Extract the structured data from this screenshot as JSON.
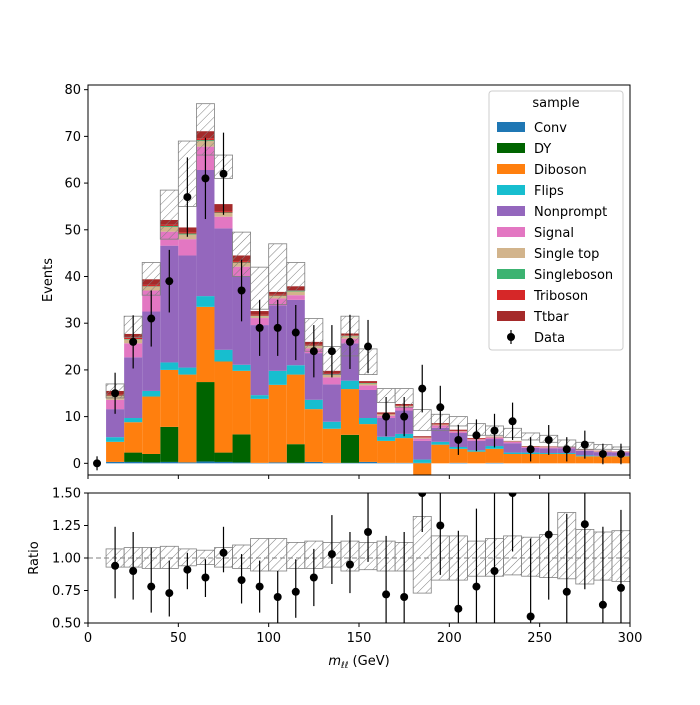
{
  "chart_data": [
    {
      "type": "bar",
      "stacked": true,
      "ylabel": "Events",
      "ylim": [
        -2.5,
        81
      ],
      "xlim": [
        0,
        300
      ],
      "yticks": [
        "0",
        "10",
        "20",
        "30",
        "40",
        "50",
        "60",
        "70",
        "80"
      ],
      "bin_edges": [
        0,
        10,
        20,
        30,
        40,
        50,
        60,
        70,
        80,
        90,
        100,
        110,
        120,
        130,
        140,
        150,
        160,
        170,
        180,
        190,
        200,
        210,
        220,
        230,
        240,
        250,
        260,
        270,
        280,
        290,
        300
      ],
      "legend": {
        "title": "sample",
        "position": "top-right",
        "data_label": "Data"
      },
      "series": [
        {
          "name": "Conv",
          "color": "#1f77b4",
          "values": [
            0,
            0.3,
            0.3,
            0.2,
            0.3,
            0.2,
            0.4,
            0.3,
            0.2,
            0.1,
            0.2,
            0.1,
            0.3,
            0.1,
            0.1,
            0.3,
            0.1,
            0.1,
            0.1,
            0,
            0.1,
            0,
            0.1,
            0,
            0,
            0,
            0,
            0,
            0,
            0
          ]
        },
        {
          "name": "DY",
          "color": "#006400",
          "values": [
            0,
            0,
            2,
            1.8,
            7.5,
            0,
            17,
            2,
            6,
            0,
            0,
            4,
            0,
            0,
            6,
            0,
            0,
            0,
            0,
            0,
            0,
            0,
            0,
            0,
            0,
            0,
            0,
            0,
            0,
            0
          ]
        },
        {
          "name": "Diboson",
          "color": "#ff7f0e",
          "values": [
            0,
            4.3,
            6.5,
            12.3,
            12.2,
            18.8,
            16.1,
            19.5,
            13.6,
            13.7,
            16.6,
            14.9,
            11.3,
            7.3,
            9.8,
            8.1,
            4.7,
            5.3,
            -2.4,
            4,
            3,
            2.5,
            3,
            2,
            2,
            2,
            2,
            1.5,
            1.5,
            1.5
          ]
        },
        {
          "name": "Flips",
          "color": "#17becf",
          "values": [
            0,
            1,
            0.9,
            1.2,
            1.6,
            1.5,
            2.3,
            2.5,
            1.3,
            0.8,
            3,
            2,
            2,
            1.5,
            1.8,
            1.3,
            0.9,
            0.9,
            0.7,
            0.6,
            0.4,
            0.3,
            0.6,
            0.3,
            0.3,
            0.2,
            0.2,
            0.2,
            0.1,
            0.1
          ]
        },
        {
          "name": "Nonprompt",
          "color": "#9467bd",
          "values": [
            0,
            6,
            13,
            17,
            25,
            24,
            27,
            26,
            19,
            15,
            14,
            14,
            10,
            8,
            8,
            6,
            4,
            5,
            4,
            3,
            3,
            2,
            1.5,
            2,
            1,
            1,
            1,
            1,
            0.8,
            0.7
          ]
        },
        {
          "name": "Signal",
          "color": "#e377c2",
          "values": [
            0,
            2,
            3,
            4.5,
            3,
            3.5,
            5,
            2.5,
            2,
            1.5,
            1.5,
            1,
            1,
            1.5,
            1,
            1,
            0.5,
            0.8,
            0.5,
            0.5,
            0.3,
            0.3,
            0.3,
            0.3,
            0.2,
            0.2,
            0.2,
            0.1,
            0.1,
            0.1
          ]
        },
        {
          "name": "Single top",
          "color": "#d2b48c",
          "values": [
            0,
            0.8,
            0.8,
            0.8,
            1,
            1,
            1.2,
            0.8,
            0.8,
            0.4,
            0.5,
            0.8,
            0.5,
            0.6,
            0.5,
            0.4,
            0.3,
            0.2,
            0.2,
            0.2,
            0.1,
            0.1,
            0.1,
            0.1,
            0.1,
            0.1,
            0.1,
            0.1,
            0.1,
            0
          ]
        },
        {
          "name": "Singleboson",
          "color": "#3cb371",
          "values": [
            0,
            0.1,
            0.1,
            0.1,
            0.2,
            0.2,
            0.2,
            0.1,
            0.1,
            0.1,
            0.1,
            0.1,
            0.1,
            0.1,
            0.1,
            0.1,
            0,
            0,
            0,
            0,
            0,
            0,
            0,
            0,
            0,
            0,
            0,
            0,
            0,
            0
          ]
        },
        {
          "name": "Triboson",
          "color": "#d62728",
          "values": [
            0,
            0.2,
            0.3,
            0.3,
            0.3,
            0.3,
            0.4,
            0.3,
            0.3,
            0.2,
            0.2,
            0.2,
            0.2,
            0.1,
            0.1,
            0.1,
            0.1,
            0.1,
            0.1,
            0.1,
            0.1,
            0.1,
            0,
            0,
            0,
            0,
            0,
            0,
            0,
            0
          ]
        },
        {
          "name": "Ttbar",
          "color": "#a52a2a",
          "values": [
            0,
            0.8,
            0.8,
            1.2,
            1,
            1,
            1.5,
            1.5,
            1.2,
            0.8,
            0.6,
            0.8,
            0.6,
            0.6,
            0.4,
            0.3,
            0.3,
            0.3,
            0.2,
            0.2,
            0.2,
            0.1,
            0.1,
            0.1,
            0.1,
            0.1,
            0.1,
            0.1,
            0.1,
            0.1
          ]
        }
      ],
      "uncertainty_band": {
        "down": [
          0,
          14,
          27,
          36,
          48,
          55,
          66,
          61,
          40,
          33,
          34,
          37,
          24,
          19,
          23,
          19,
          13,
          12,
          7,
          7,
          8,
          6,
          6,
          5.5,
          5,
          4.5,
          3.5,
          3,
          3,
          3
        ],
        "up": [
          0,
          17,
          31.5,
          43,
          58.5,
          69,
          77,
          66,
          49.5,
          42,
          47,
          43,
          31,
          25,
          31.5,
          24.5,
          16,
          16,
          11.5,
          10.5,
          10,
          8.5,
          8,
          7.5,
          6.5,
          6,
          5,
          4.5,
          4,
          3.5
        ]
      },
      "data_points": {
        "label": "Data",
        "x": [
          5,
          15,
          25,
          35,
          45,
          55,
          65,
          75,
          85,
          95,
          105,
          115,
          125,
          135,
          145,
          155,
          165,
          175,
          185,
          195,
          205,
          215,
          225,
          235,
          245,
          255,
          265,
          275,
          285,
          295
        ],
        "y": [
          0,
          15,
          26,
          31,
          39,
          57,
          61,
          62,
          37,
          29,
          29,
          28,
          24,
          24,
          26,
          25,
          10,
          10,
          16,
          12,
          5,
          6,
          7,
          9,
          3,
          5,
          3,
          4,
          2,
          2
        ],
        "err": [
          1.5,
          4.4,
          5.7,
          6,
          6.7,
          8.5,
          8.7,
          8.8,
          6.6,
          6,
          6,
          5.9,
          5.6,
          5.6,
          5.8,
          5.7,
          4.2,
          4.2,
          5.1,
          4.6,
          3.2,
          3.4,
          3.6,
          4,
          2.6,
          3.2,
          2.6,
          3,
          2.2,
          2.2
        ]
      }
    },
    {
      "type": "scatter",
      "xlabel": "m_ℓℓ (GeV)",
      "xlabel_main": "m",
      "xlabel_sub": "ℓℓ",
      "xlabel_unit": " (GeV)",
      "ylabel": "Ratio",
      "ylim": [
        0.5,
        1.5
      ],
      "xlim": [
        0,
        300
      ],
      "yticks": [
        "0.50",
        "0.75",
        "1.00",
        "1.25",
        "1.50"
      ],
      "xticks": [
        "0",
        "50",
        "100",
        "150",
        "200",
        "250",
        "300"
      ],
      "reference_line": 1.0,
      "x": [
        15,
        25,
        35,
        45,
        55,
        65,
        75,
        85,
        95,
        105,
        115,
        125,
        135,
        145,
        155,
        165,
        175,
        185,
        195,
        205,
        215,
        225,
        235,
        245,
        255,
        265,
        275,
        285,
        295
      ],
      "y": [
        0.94,
        0.9,
        0.78,
        0.73,
        0.91,
        0.85,
        1.04,
        0.83,
        0.78,
        0.7,
        0.74,
        0.85,
        1.03,
        0.95,
        1.2,
        0.72,
        0.7,
        1.5,
        1.25,
        0.61,
        0.78,
        0.9,
        1.5,
        0.55,
        1.18,
        0.74,
        1.26,
        0.64,
        0.77
      ],
      "y_err_low": [
        0.25,
        0.22,
        0.2,
        0.18,
        0.15,
        0.15,
        0.15,
        0.18,
        0.2,
        0.2,
        0.2,
        0.22,
        0.23,
        0.22,
        0.23,
        0.4,
        0.4,
        0.3,
        0.38,
        0.55,
        0.45,
        0.5,
        0.45,
        0.5,
        0.5,
        0.5,
        0.5,
        0.5,
        0.5
      ],
      "y_err_high": [
        0.3,
        0.3,
        0.3,
        0.25,
        0.13,
        0.14,
        0.2,
        0.2,
        0.2,
        0.2,
        0.25,
        0.22,
        0.3,
        0.25,
        0.3,
        0.45,
        0.5,
        0.3,
        0.35,
        0.6,
        0.6,
        0.6,
        0.45,
        0.6,
        0.6,
        0.6,
        0.6,
        0.6,
        0.6
      ],
      "band_down": [
        0.93,
        0.93,
        0.92,
        0.92,
        0.94,
        0.95,
        0.93,
        0.92,
        0.9,
        0.9,
        0.92,
        0.92,
        0.93,
        0.9,
        0.91,
        0.9,
        0.9,
        0.73,
        0.83,
        0.83,
        0.86,
        0.86,
        0.87,
        0.86,
        0.85,
        0.84,
        0.8,
        0.83,
        0.82
      ],
      "band_up": [
        1.07,
        1.08,
        1.08,
        1.09,
        1.07,
        1.06,
        1.08,
        1.1,
        1.15,
        1.15,
        1.12,
        1.13,
        1.12,
        1.13,
        1.12,
        1.13,
        1.12,
        1.32,
        1.17,
        1.17,
        1.13,
        1.15,
        1.17,
        1.16,
        1.18,
        1.35,
        1.22,
        1.2,
        1.21
      ]
    }
  ]
}
